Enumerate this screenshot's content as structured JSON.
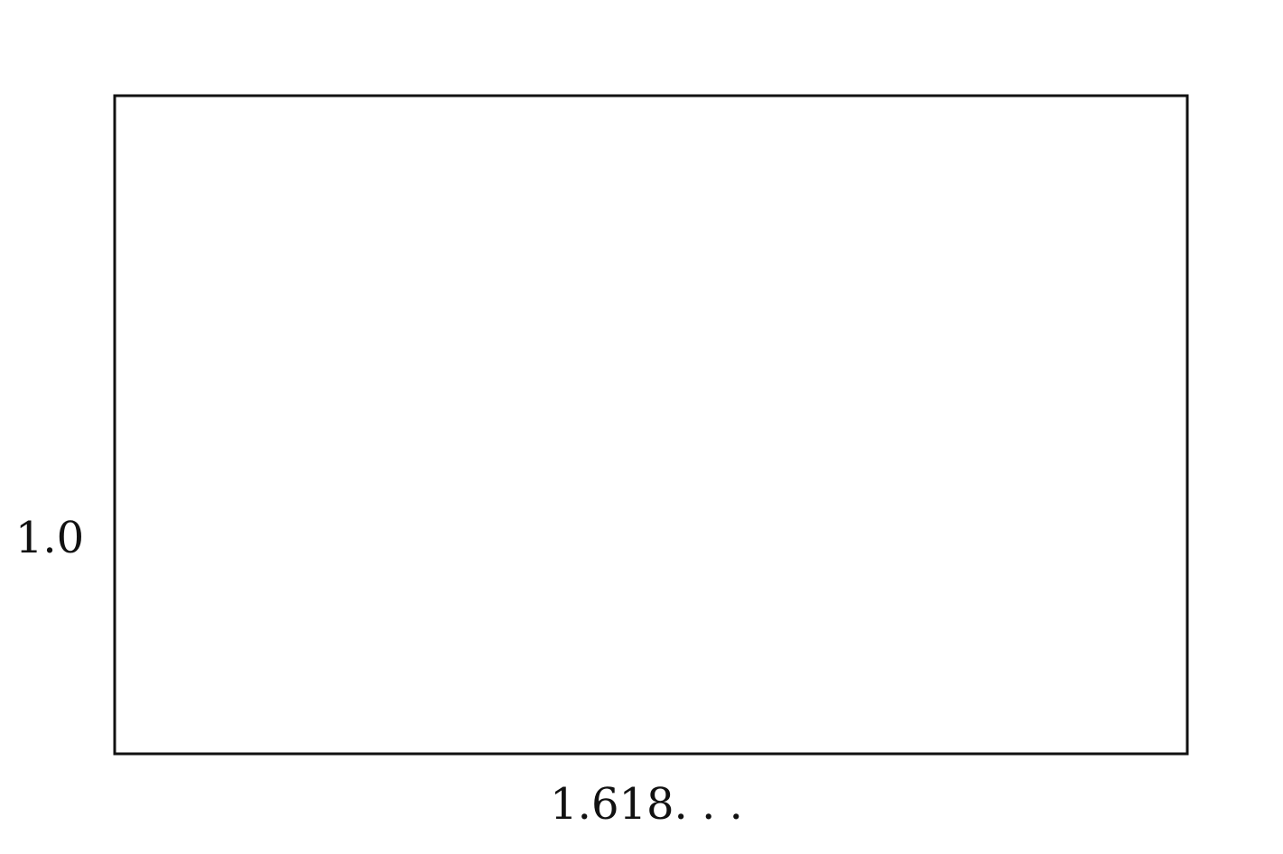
{
  "diagram": {
    "width_label": "1.618. . .",
    "height_label": "1.0",
    "line_color": "#111111",
    "fill_color": "#ffffff"
  }
}
